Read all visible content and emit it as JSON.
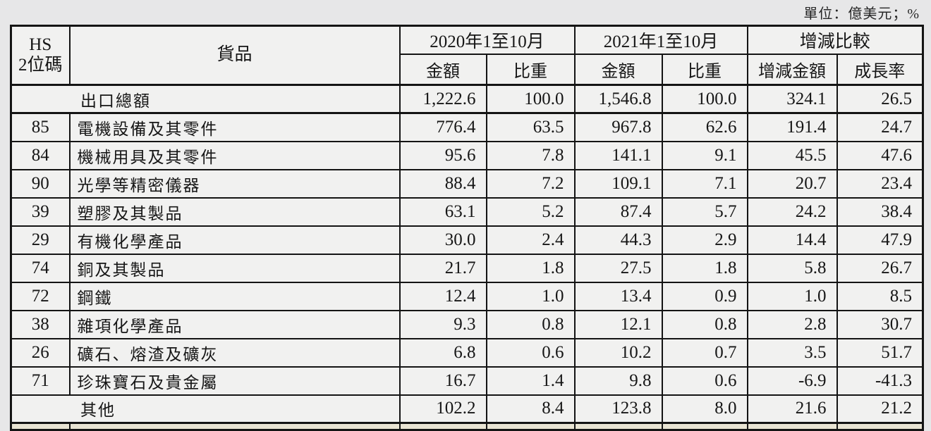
{
  "page": {
    "unit_note": "單位：億美元；%"
  },
  "colors": {
    "page_bg": "#e7e7e8",
    "cell_bg": "#f1f1f0",
    "border": "#141414",
    "text": "#161616",
    "partial_row_bg": "#e9e4d3"
  },
  "table": {
    "header": {
      "hs_line1": "HS",
      "hs_line2": "2位碼",
      "product": "貨品",
      "group_2020": "2020年1至10月",
      "group_2021": "2021年1至10月",
      "group_change": "增減比較",
      "amount_2020": "金額",
      "share_2020": "比重",
      "amount_2021": "金額",
      "share_2021": "比重",
      "change_amount": "增減金額",
      "growth_rate": "成長率"
    },
    "rows": [
      {
        "span": true,
        "total": true,
        "hs": "",
        "product": "出口總額",
        "amount_2020": "1,222.6",
        "share_2020": "100.0",
        "amount_2021": "1,546.8",
        "share_2021": "100.0",
        "change_amount": "324.1",
        "growth_rate": "26.5"
      },
      {
        "span": false,
        "total": false,
        "hs": "85",
        "product": "電機設備及其零件",
        "amount_2020": "776.4",
        "share_2020": "63.5",
        "amount_2021": "967.8",
        "share_2021": "62.6",
        "change_amount": "191.4",
        "growth_rate": "24.7"
      },
      {
        "span": false,
        "total": false,
        "hs": "84",
        "product": "機械用具及其零件",
        "amount_2020": "95.6",
        "share_2020": "7.8",
        "amount_2021": "141.1",
        "share_2021": "9.1",
        "change_amount": "45.5",
        "growth_rate": "47.6"
      },
      {
        "span": false,
        "total": false,
        "hs": "90",
        "product": "光學等精密儀器",
        "amount_2020": "88.4",
        "share_2020": "7.2",
        "amount_2021": "109.1",
        "share_2021": "7.1",
        "change_amount": "20.7",
        "growth_rate": "23.4"
      },
      {
        "span": false,
        "total": false,
        "hs": "39",
        "product": "塑膠及其製品",
        "amount_2020": "63.1",
        "share_2020": "5.2",
        "amount_2021": "87.4",
        "share_2021": "5.7",
        "change_amount": "24.2",
        "growth_rate": "38.4"
      },
      {
        "span": false,
        "total": false,
        "hs": "29",
        "product": "有機化學產品",
        "amount_2020": "30.0",
        "share_2020": "2.4",
        "amount_2021": "44.3",
        "share_2021": "2.9",
        "change_amount": "14.4",
        "growth_rate": "47.9"
      },
      {
        "span": false,
        "total": false,
        "hs": "74",
        "product": "銅及其製品",
        "amount_2020": "21.7",
        "share_2020": "1.8",
        "amount_2021": "27.5",
        "share_2021": "1.8",
        "change_amount": "5.8",
        "growth_rate": "26.7"
      },
      {
        "span": false,
        "total": false,
        "hs": "72",
        "product": "鋼鐵",
        "amount_2020": "12.4",
        "share_2020": "1.0",
        "amount_2021": "13.4",
        "share_2021": "0.9",
        "change_amount": "1.0",
        "growth_rate": "8.5"
      },
      {
        "span": false,
        "total": false,
        "hs": "38",
        "product": "雜項化學產品",
        "amount_2020": "9.3",
        "share_2020": "0.8",
        "amount_2021": "12.1",
        "share_2021": "0.8",
        "change_amount": "2.8",
        "growth_rate": "30.7"
      },
      {
        "span": false,
        "total": false,
        "hs": "26",
        "product": "礦石、熔渣及礦灰",
        "amount_2020": "6.8",
        "share_2020": "0.6",
        "amount_2021": "10.2",
        "share_2021": "0.7",
        "change_amount": "3.5",
        "growth_rate": "51.7"
      },
      {
        "span": false,
        "total": false,
        "hs": "71",
        "product": "珍珠寶石及貴金屬",
        "amount_2020": "16.7",
        "share_2020": "1.4",
        "amount_2021": "9.8",
        "share_2021": "0.6",
        "change_amount": "-6.9",
        "growth_rate": "-41.3"
      },
      {
        "span": true,
        "total": false,
        "last": true,
        "hs": "",
        "product": "其他",
        "amount_2020": "102.2",
        "share_2020": "8.4",
        "amount_2021": "123.8",
        "share_2021": "8.0",
        "change_amount": "21.6",
        "growth_rate": "21.2"
      }
    ]
  }
}
